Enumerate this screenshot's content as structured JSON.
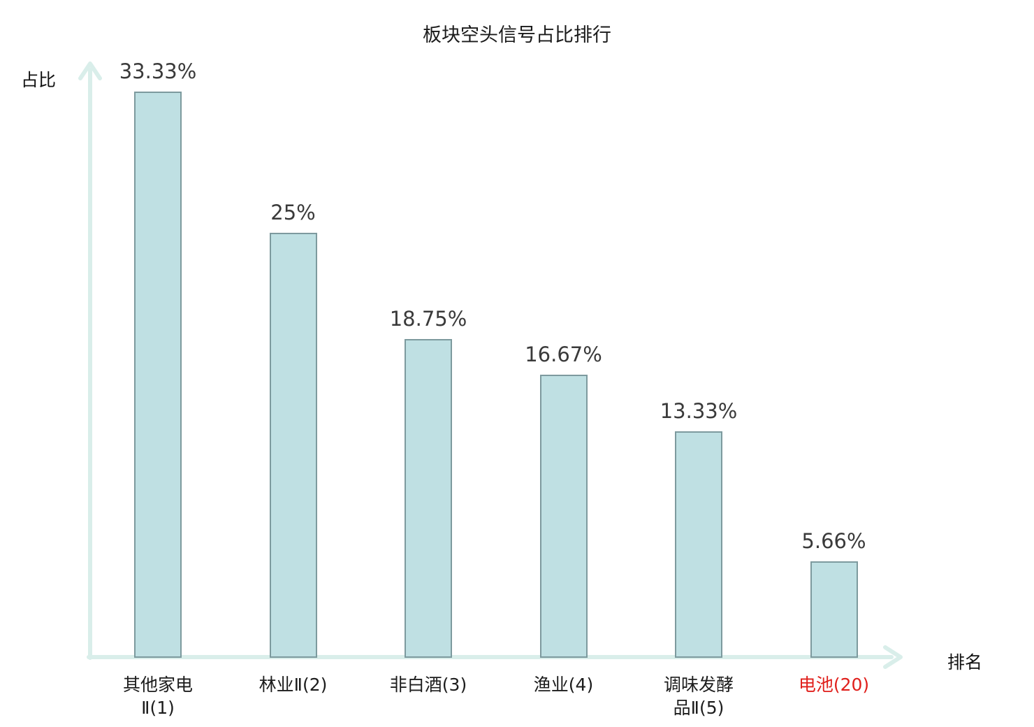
{
  "chart_data": {
    "type": "bar",
    "title": "板块空头信号占比排行",
    "xlabel": "排名",
    "ylabel": "占比",
    "categories": [
      "其他家电Ⅱ(1)",
      "林业Ⅱ(2)",
      "非白酒(3)",
      "渔业(4)",
      "调味发酵品Ⅱ(5)",
      "电池(20)"
    ],
    "category_lines": [
      [
        "其他家电",
        "Ⅱ(1)"
      ],
      [
        "林业Ⅱ(2)"
      ],
      [
        "非白酒(3)"
      ],
      [
        "渔业(4)"
      ],
      [
        "调味发酵",
        "品Ⅱ(5)"
      ],
      [
        "电池(20)"
      ]
    ],
    "values": [
      33.33,
      25,
      18.75,
      16.67,
      13.33,
      5.66
    ],
    "value_labels": [
      "33.33%",
      "25%",
      "18.75%",
      "16.67%",
      "13.33%",
      "5.66%"
    ],
    "highlight_index": 5,
    "ylim": [
      0,
      35
    ],
    "grid": false,
    "legend": "none",
    "colors": {
      "bar_fill": "#bfe0e3",
      "bar_border": "#7d9a9e",
      "axis": "#d9eeea",
      "value_label": "#3a3a3a",
      "category_label": "#1c1c1c",
      "highlight": "#e01f1b",
      "background": "#ffffff"
    }
  }
}
